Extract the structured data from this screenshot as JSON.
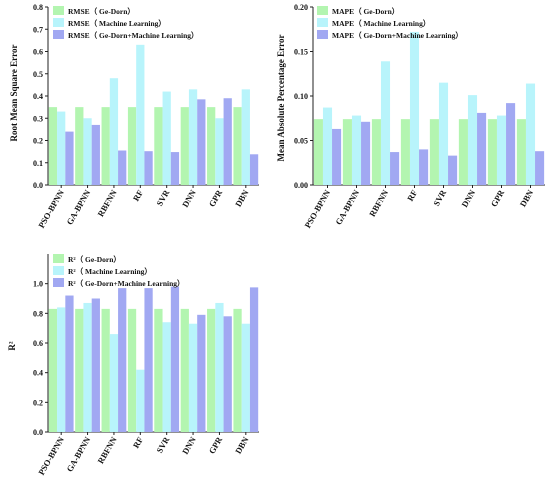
{
  "chart_data": [
    {
      "type": "bar",
      "categories": [
        "PSO-BPNN",
        "GA-BPNN",
        "RBFNN",
        "RF",
        "SVR",
        "DNN",
        "GPR",
        "DBN"
      ],
      "series": [
        {
          "name": "RMSE（ Ge-Dorn）",
          "color": "#b3f5b0",
          "values": [
            0.35,
            0.35,
            0.35,
            0.35,
            0.35,
            0.35,
            0.35,
            0.35
          ]
        },
        {
          "name": "RMSE（ Machine Learning）",
          "color": "#b8f4fb",
          "values": [
            0.33,
            0.3,
            0.48,
            0.63,
            0.42,
            0.43,
            0.3,
            0.43
          ]
        },
        {
          "name": "RMSE（ Ge-Dorn+Machine Learning）",
          "color": "#a1a8f2",
          "values": [
            0.24,
            0.27,
            0.155,
            0.152,
            0.148,
            0.385,
            0.39,
            0.138
          ]
        }
      ],
      "ylabel": "Root Mean Square Error",
      "ylim": [
        0,
        0.8
      ],
      "yticks": [
        "0.0",
        "0.1",
        "0.2",
        "0.3",
        "0.4",
        "0.5",
        "0.6",
        "0.7",
        "0.8"
      ],
      "legend_position": "top-left"
    },
    {
      "type": "bar",
      "categories": [
        "PSO-BPNN",
        "GA-BPNN",
        "RBFNN",
        "RF",
        "SVR",
        "DNN",
        "GPR",
        "DBN"
      ],
      "series": [
        {
          "name": "MAPE（ Ge-Dorn）",
          "color": "#b3f5b0",
          "values": [
            0.074,
            0.074,
            0.074,
            0.074,
            0.074,
            0.074,
            0.074,
            0.074
          ]
        },
        {
          "name": "MAPE（ Machine Learning）",
          "color": "#b8f4fb",
          "values": [
            0.087,
            0.078,
            0.139,
            0.172,
            0.115,
            0.101,
            0.078,
            0.114
          ]
        },
        {
          "name": "MAPE（ Ge-Dorn+Machine Learning）",
          "color": "#a1a8f2",
          "values": [
            0.063,
            0.071,
            0.037,
            0.04,
            0.033,
            0.081,
            0.092,
            0.038
          ]
        }
      ],
      "ylabel": "Mean Absolute Percentage Error",
      "ylim": [
        0,
        0.2
      ],
      "yticks": [
        "0.00",
        "0.05",
        "0.10",
        "0.15",
        "0.20"
      ],
      "legend_position": "top-left"
    },
    {
      "type": "bar",
      "categories": [
        "PSO-BPNN",
        "GA-BPNN",
        "RBFNN",
        "RF",
        "SVR",
        "DNN",
        "GPR",
        "DBN"
      ],
      "series": [
        {
          "name": "R²（ Ge-Dorn）",
          "color": "#b3f5b0",
          "values": [
            0.83,
            0.83,
            0.83,
            0.83,
            0.83,
            0.83,
            0.83,
            0.83
          ]
        },
        {
          "name": "R²（ Machine Learning）",
          "color": "#b8f4fb",
          "values": [
            0.84,
            0.87,
            0.66,
            0.42,
            0.74,
            0.73,
            0.87,
            0.73
          ]
        },
        {
          "name": "R²（ Ge-Dorn+Machine Learning）",
          "color": "#a1a8f2",
          "values": [
            0.92,
            0.9,
            0.97,
            0.97,
            0.98,
            0.79,
            0.78,
            0.975
          ]
        }
      ],
      "ylabel": "R²",
      "ylim": [
        0,
        1.2
      ],
      "yticks": [
        "0.0",
        "0.2",
        "0.4",
        "0.6",
        "0.8",
        "1.0"
      ],
      "legend_position": "top-left"
    }
  ]
}
